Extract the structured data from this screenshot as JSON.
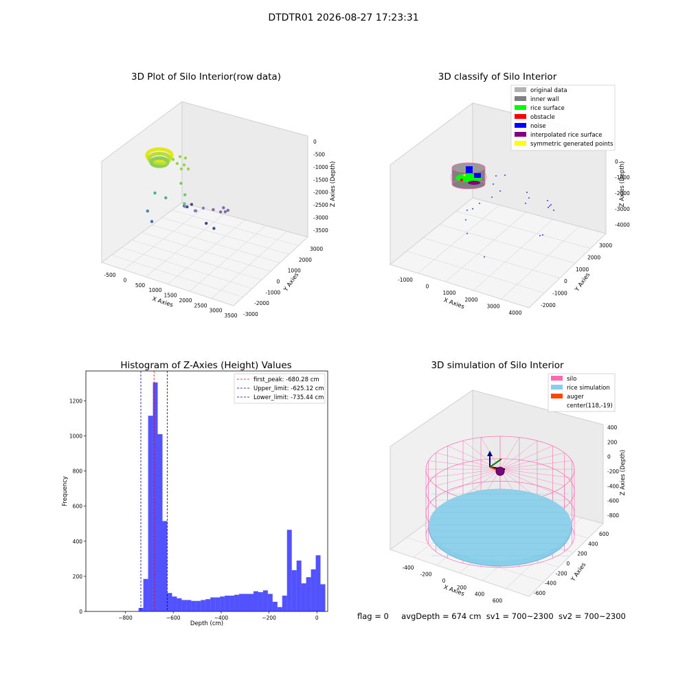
{
  "figure": {
    "suptitle": "DTDTR01 2026-08-27 17:23:31",
    "footer": {
      "flag": "flag = 0",
      "avg_depth": "avgDepth = 674 cm",
      "sv1": "sv1 = 700~2300",
      "sv2": "sv2 = 700~2300"
    }
  },
  "colors": {
    "histogram_bar": "#0000ff",
    "first_peak": "#ff0000",
    "limits": "#00008b",
    "original_data": "#b3b3b3",
    "inner_wall": "#808080",
    "rice_surface": "#00ff00",
    "obstacle": "#ff0000",
    "noise": "#0000ff",
    "interpolated_rice_surface": "#800080",
    "symmetric_generated_points": "#ffff00",
    "silo": "#ff69b4",
    "rice_simulation": "#87ceeb",
    "auger": "#ff4500"
  },
  "chart_data": [
    {
      "type": "scatter3d",
      "title": "3D Plot of Silo Interior(row data)",
      "xlabel": "X Axies",
      "ylabel": "Y Axies",
      "zlabel": "Z Axies (Depth)",
      "xticks": [
        "-500",
        "0",
        "500",
        "1000",
        "1500",
        "2000",
        "2500",
        "3000",
        "3500"
      ],
      "yticks": [
        "-3000",
        "-2000",
        "-1000",
        "0",
        "1000",
        "2000",
        "3000"
      ],
      "zticks": [
        "0",
        "-500",
        "-1000",
        "-1500",
        "-2000",
        "-2500",
        "-3000",
        "-3500"
      ],
      "xlim": [
        -600,
        3500
      ],
      "ylim": [
        -3000,
        3400
      ],
      "zlim": [
        -3800,
        200
      ],
      "points": [
        {
          "x": 1850,
          "y": -2700,
          "z": -650,
          "c": "#3c4f8a"
        },
        {
          "x": 1900,
          "y": -2600,
          "z": -700,
          "c": "#3c4f8a"
        },
        {
          "x": 2000,
          "y": -2500,
          "z": -600,
          "c": "#3c4f8a"
        },
        {
          "x": 2400,
          "y": -1800,
          "z": -900,
          "c": "#7b6ba8"
        },
        {
          "x": 2550,
          "y": -1600,
          "z": -1000,
          "c": "#7b6ba8"
        },
        {
          "x": 2600,
          "y": -1500,
          "z": -850,
          "c": "#7b6ba8"
        },
        {
          "x": 2700,
          "y": -1400,
          "z": -950,
          "c": "#7b6ba8"
        },
        {
          "x": 2500,
          "y": -1100,
          "z": -1200,
          "c": "#7b6ba8"
        },
        {
          "x": 1600,
          "y": -1200,
          "z": -1500,
          "c": "#8a7bb5"
        },
        {
          "x": 1550,
          "y": -1000,
          "z": -1600,
          "c": "#8a7bb5"
        },
        {
          "x": 1700,
          "y": -800,
          "z": -1500,
          "c": "#8a7bb5"
        },
        {
          "x": 1400,
          "y": -1500,
          "z": -1300,
          "c": "#8a7bb5"
        },
        {
          "x": 100,
          "y": -800,
          "z": -2700,
          "c": "#3b6ea8"
        },
        {
          "x": -150,
          "y": -500,
          "z": -2500,
          "c": "#3b8aa8"
        },
        {
          "x": 0,
          "y": -300,
          "z": -1800,
          "c": "#48b08a"
        },
        {
          "x": 300,
          "y": -200,
          "z": -1900,
          "c": "#48b08a"
        },
        {
          "x": 800,
          "y": 0,
          "z": -2000,
          "c": "#5ec27a"
        },
        {
          "x": 700,
          "y": 300,
          "z": -1800,
          "c": "#6dc86b"
        },
        {
          "x": 500,
          "y": 500,
          "z": -1500,
          "c": "#7ccc5a"
        },
        {
          "x": 1400,
          "y": 200,
          "z": -2600,
          "c": "#3c4f8a"
        },
        {
          "x": 1600,
          "y": 300,
          "z": -2750,
          "c": "#3c4f8a"
        }
      ]
    },
    {
      "type": "scatter3d",
      "title": "3D classify of Silo Interior",
      "xlabel": "X Axies",
      "ylabel": "Y Axies",
      "zlabel": "Z Axies (Depth)",
      "xticks": [
        "-1000",
        "0",
        "1000",
        "2000",
        "3000",
        "4000"
      ],
      "yticks": [
        "-2000",
        "-1000",
        "0",
        "1000",
        "2000",
        "3000"
      ],
      "zticks": [
        "0",
        "-1000",
        "-2000",
        "-3000",
        "-4000"
      ],
      "xlim": [
        -1500,
        4500
      ],
      "ylim": [
        -2500,
        3500
      ],
      "zlim": [
        -4500,
        500
      ],
      "legend": {
        "position": "upper-right",
        "items": [
          {
            "label": "original data",
            "color": "#b3b3b3"
          },
          {
            "label": "inner wall",
            "color": "#808080"
          },
          {
            "label": "rice surface",
            "color": "#00ff00"
          },
          {
            "label": "obstacle",
            "color": "#ff0000"
          },
          {
            "label": "noise",
            "color": "#0000ff"
          },
          {
            "label": "interpolated rice surface",
            "color": "#800080"
          },
          {
            "label": "symmetric generated points",
            "color": "#ffff00"
          }
        ]
      }
    },
    {
      "type": "bar",
      "title": "Histogram of Z-Axies (Height) Values",
      "xlabel": "Depth (cm)",
      "ylabel": "Frequency",
      "xlim": [
        -965,
        45
      ],
      "ylim": [
        0,
        1370
      ],
      "xticks": [
        -800,
        -600,
        -400,
        -200,
        0
      ],
      "xtick_labels": [
        "−800",
        "−600",
        "−400",
        "−200",
        "0"
      ],
      "yticks": [
        0,
        200,
        400,
        600,
        800,
        1000,
        1200
      ],
      "bin_width": 20,
      "bin_start": -745,
      "values": [
        20,
        185,
        1115,
        1305,
        1010,
        515,
        105,
        85,
        75,
        65,
        65,
        60,
        60,
        65,
        70,
        80,
        80,
        85,
        90,
        90,
        95,
        100,
        100,
        100,
        115,
        110,
        120,
        100,
        55,
        25,
        90,
        465,
        235,
        290,
        160,
        195,
        240,
        320,
        155
      ],
      "lines": [
        {
          "name": "first_peak",
          "value": -680.28,
          "label": "first_peak: -680.28 cm",
          "color": "#ff0000"
        },
        {
          "name": "upper_limit",
          "value": -625.12,
          "label": "Upper_limit: -625.12 cm",
          "color": "#00008b"
        },
        {
          "name": "lower_limit",
          "value": -735.44,
          "label": "Lower_limit: -735.44 cm",
          "color": "#00008b"
        }
      ],
      "legend": {
        "position": "upper-right"
      }
    },
    {
      "type": "surface3d",
      "title": "3D simulation of Silo Interior",
      "xlabel": "X Axies",
      "ylabel": "Y Axies",
      "zlabel": "Z Axies (Depth)",
      "xticks": [
        "-400",
        "-200",
        "0",
        "200",
        "400",
        "600"
      ],
      "yticks": [
        "-600",
        "-400",
        "-200",
        "0",
        "200",
        "400",
        "600"
      ],
      "zticks": [
        "400",
        "200",
        "0",
        "-200",
        "-400",
        "-600",
        "-800"
      ],
      "xlim": [
        -550,
        750
      ],
      "ylim": [
        -700,
        700
      ],
      "zlim": [
        -900,
        500
      ],
      "legend": {
        "position": "upper-right",
        "items": [
          {
            "label": "silo",
            "color": "#ff69b4"
          },
          {
            "label": "rice simulation",
            "color": "#87ceeb"
          },
          {
            "label": "auger",
            "color": "#ff4500"
          },
          {
            "label": "center(118,-19)",
            "color": ""
          }
        ]
      }
    }
  ]
}
